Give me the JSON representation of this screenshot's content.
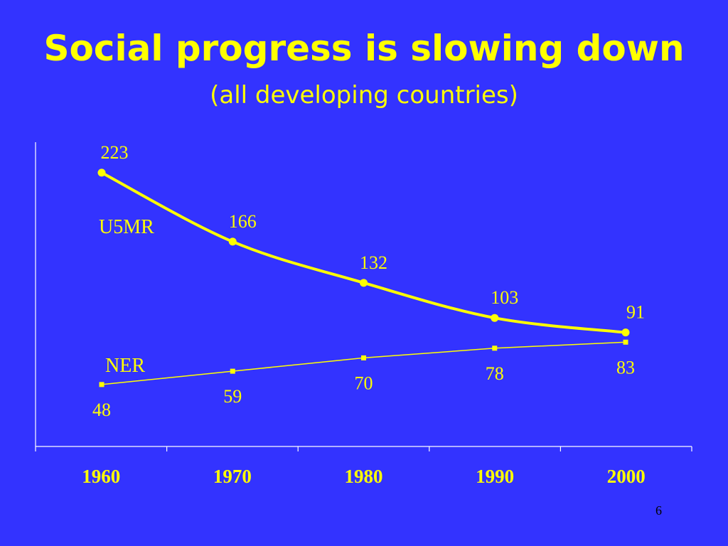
{
  "slide": {
    "title": "Social progress is slowing down",
    "subtitle": "(all developing countries)",
    "page_number": "6"
  },
  "colors": {
    "background": "#3333ff",
    "accent": "#ffff00",
    "page_number": "#000000"
  },
  "chart_data": {
    "type": "line",
    "x": [
      1960,
      1970,
      1980,
      1990,
      2000
    ],
    "categories": [
      "1960",
      "1970",
      "1980",
      "1990",
      "2000"
    ],
    "series": [
      {
        "name": "U5MR",
        "values": [
          223,
          166,
          132,
          103,
          91
        ],
        "marker": "circle",
        "line": "thick"
      },
      {
        "name": "NER",
        "values": [
          48,
          59,
          70,
          78,
          83
        ],
        "marker": "square",
        "line": "thin"
      }
    ],
    "ylim": [
      0,
      250
    ],
    "grid": false,
    "y_tick_labels": false,
    "legend": "inline labels"
  }
}
